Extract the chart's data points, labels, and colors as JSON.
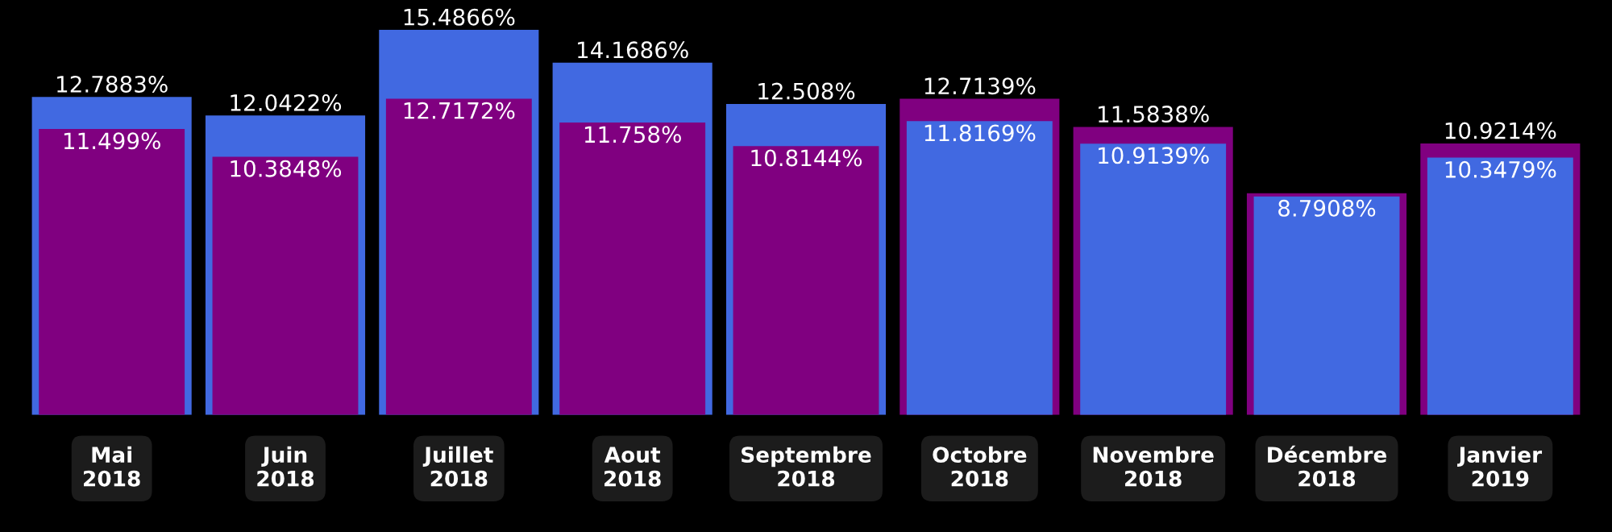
{
  "chart_data": {
    "type": "bar",
    "categories": [
      "Mai\n2018",
      "Juin\n2018",
      "Juillet\n2018",
      "Aout\n2018",
      "Septembre\n2018",
      "Octobre\n2018",
      "Novembre\n2018",
      "Décembre\n2018",
      "Janvier\n2019"
    ],
    "series": [
      {
        "color": "#800080",
        "values": [
          11.499,
          10.3848,
          12.7172,
          11.758,
          10.8144,
          12.7139,
          11.5838,
          8.92,
          10.9214
        ],
        "value_labels": [
          "11.499%",
          "10.3848%",
          "12.7172%",
          "11.758%",
          "10.8144%",
          "12.7139%",
          "11.5838%",
          null,
          "10.9214%"
        ]
      },
      {
        "color": "#4169e1",
        "values": [
          12.7883,
          12.0422,
          15.4866,
          14.1686,
          12.508,
          11.8169,
          10.9139,
          8.7908,
          10.3479
        ],
        "value_labels": [
          "12.7883%",
          "12.0422%",
          "15.4866%",
          "14.1686%",
          "12.508%",
          "11.8169%",
          "10.9139%",
          "8.7908%",
          "10.3479%"
        ]
      }
    ],
    "grid": false,
    "legend": false,
    "tick_labels": "x"
  }
}
